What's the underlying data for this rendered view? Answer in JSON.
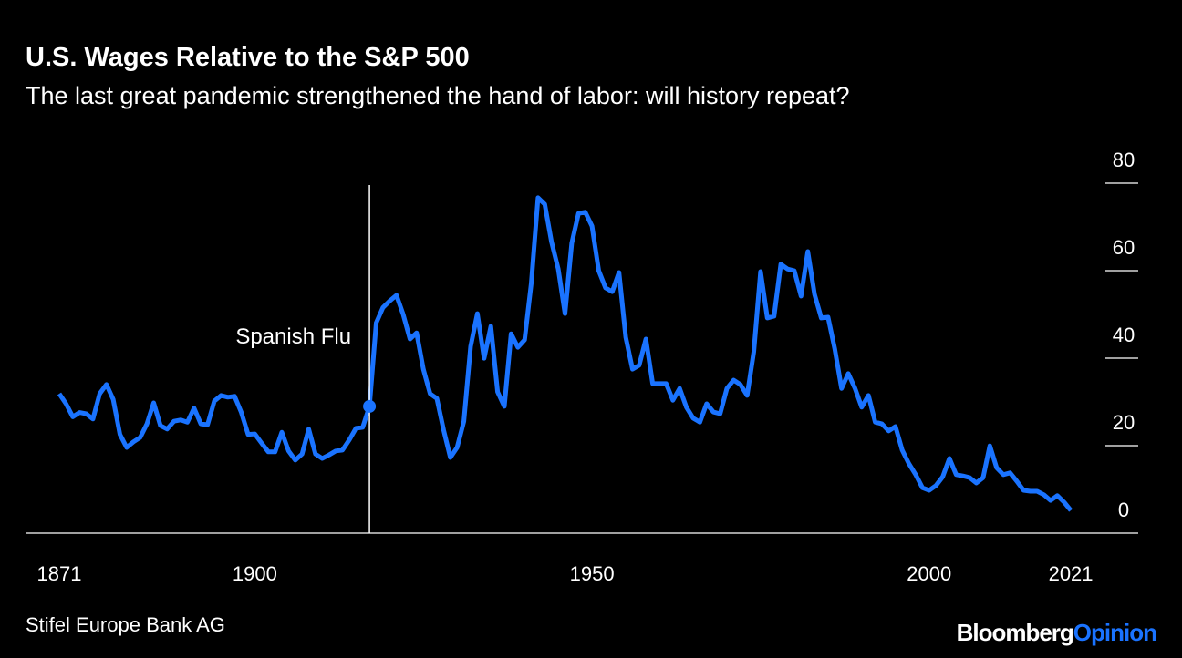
{
  "chart_data": {
    "type": "line",
    "title": "U.S. Wages Relative to the S&P 500",
    "subtitle": "The last great pandemic strengthened the hand of labor: will history repeat?",
    "source": "Stifel Europe Bank AG",
    "brand": {
      "name": "Bloomberg",
      "section": "Opinion"
    },
    "annotation": {
      "text": "Spanish Flu",
      "x": 1917,
      "point": 46
    },
    "x": [
      1871,
      1872,
      1873,
      1874,
      1875,
      1876,
      1877,
      1878,
      1879,
      1880,
      1881,
      1882,
      1883,
      1884,
      1885,
      1886,
      1887,
      1888,
      1889,
      1890,
      1891,
      1892,
      1893,
      1894,
      1895,
      1896,
      1897,
      1898,
      1899,
      1900,
      1901,
      1902,
      1903,
      1904,
      1905,
      1906,
      1907,
      1908,
      1909,
      1910,
      1911,
      1912,
      1913,
      1914,
      1915,
      1916,
      1917,
      1918,
      1919,
      1920,
      1921,
      1922,
      1923,
      1924,
      1925,
      1926,
      1927,
      1928,
      1929,
      1930,
      1931,
      1932,
      1933,
      1934,
      1935,
      1936,
      1937,
      1938,
      1939,
      1940,
      1941,
      1942,
      1943,
      1944,
      1945,
      1946,
      1947,
      1948,
      1949,
      1950,
      1951,
      1952,
      1953,
      1954,
      1955,
      1956,
      1957,
      1958,
      1959,
      1960,
      1961,
      1962,
      1963,
      1964,
      1965,
      1966,
      1967,
      1968,
      1969,
      1970,
      1971,
      1972,
      1973,
      1974,
      1975,
      1976,
      1977,
      1978,
      1979,
      1980,
      1981,
      1982,
      1983,
      1984,
      1985,
      1986,
      1987,
      1988,
      1989,
      1990,
      1991,
      1992,
      1993,
      1994,
      1995,
      1996,
      1997,
      1998,
      1999,
      2000,
      2001,
      2002,
      2003,
      2004,
      2005,
      2006,
      2007,
      2008,
      2009,
      2010,
      2011,
      2012,
      2013,
      2014,
      2015,
      2016,
      2017,
      2018,
      2019,
      2020,
      2021
    ],
    "series": [
      {
        "name": "Wages relative to S&P 500",
        "color": "#1a73ff",
        "values": [
          32.3,
          30,
          27,
          28,
          27.7,
          26.5,
          32.3,
          34.4,
          31,
          23,
          20,
          21.3,
          22.3,
          25.4,
          30.2,
          25,
          24.2,
          26,
          26.3,
          25.8,
          29,
          25.4,
          25.2,
          30.6,
          31.9,
          31.5,
          31.7,
          28,
          23,
          23.1,
          21,
          19,
          19,
          23.5,
          19.2,
          17.1,
          18.5,
          24.2,
          18.5,
          17.5,
          18.3,
          19.2,
          19.4,
          21.7,
          24.4,
          24.6,
          29.4,
          48.5,
          52,
          53.5,
          54.8,
          50.4,
          44.8,
          46.2,
          37.9,
          32.3,
          31.2,
          24,
          17.7,
          20,
          26,
          43.1,
          50.6,
          40.4,
          47.7,
          32.7,
          29.4,
          46,
          42.9,
          44.6,
          57.5,
          77.1,
          75.6,
          67,
          60.8,
          50.6,
          66.7,
          73.5,
          73.8,
          70.6,
          60.4,
          56.5,
          55.6,
          60,
          45.2,
          37.9,
          38.8,
          44.8,
          34.6,
          34.6,
          34.6,
          30.8,
          33.5,
          29.2,
          26.7,
          25.8,
          30,
          28.1,
          27.7,
          33.5,
          35.4,
          34.4,
          31.9,
          41.9,
          60.2,
          49.6,
          50,
          61.9,
          60.8,
          60.4,
          54.6,
          64.8,
          55,
          49.6,
          49.8,
          42.5,
          33.5,
          36.9,
          33.5,
          29.2,
          31.9,
          25.8,
          25.4,
          23.8,
          24.8,
          19.4,
          16.3,
          13.8,
          10.8,
          10.2,
          11.3,
          13.3,
          17.5,
          13.8,
          13.5,
          13.1,
          11.9,
          13.1,
          20.4,
          15.4,
          13.8,
          14.2,
          12.3,
          10.2,
          10,
          10,
          9.2,
          7.9,
          9,
          7.5,
          5.6
        ]
      }
    ],
    "xlim": [
      1866,
      2031
    ],
    "xticks": [
      1871,
      1900,
      1950,
      2000,
      2021
    ],
    "ylim": [
      0,
      80
    ],
    "yticks": [
      0,
      20,
      40,
      60,
      80
    ],
    "grid": false
  }
}
